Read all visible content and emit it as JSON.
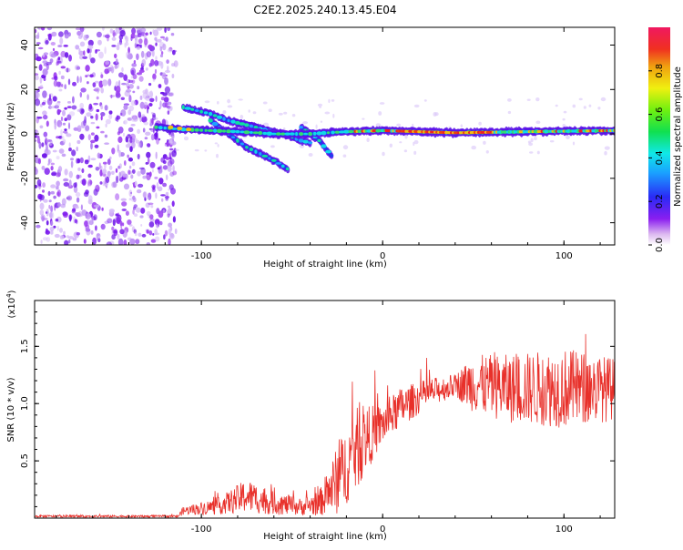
{
  "title": "C2E2.2025.240.13.45.E04",
  "chart_data": [
    {
      "type": "heatmap",
      "name": "spectrogram",
      "xlabel": "Height of straight line (km)",
      "ylabel": "Frequency (Hz)",
      "xlim": [
        -192,
        128
      ],
      "ylim": [
        -50,
        48
      ],
      "x_ticks": [
        -100,
        0,
        100
      ],
      "y_ticks": [
        -40,
        -20,
        0,
        20,
        40
      ],
      "noise_region_x": [
        -192,
        -116
      ],
      "main_line": [
        [
          -125,
          3
        ],
        [
          -110,
          2
        ],
        [
          -95,
          1.5
        ],
        [
          -80,
          1
        ],
        [
          -60,
          0
        ],
        [
          -40,
          0
        ],
        [
          -20,
          1
        ],
        [
          0,
          1.5
        ],
        [
          40,
          0.5
        ],
        [
          80,
          1
        ],
        [
          128,
          1.5
        ]
      ],
      "branches": [
        [
          [
            -110,
            12
          ],
          [
            -95,
            9
          ],
          [
            -85,
            6
          ],
          [
            -70,
            3
          ],
          [
            -60,
            0
          ]
        ],
        [
          [
            -95,
            6
          ],
          [
            -85,
            0
          ],
          [
            -75,
            -6
          ],
          [
            -60,
            -12
          ],
          [
            -52,
            -16
          ]
        ],
        [
          [
            -80,
            5
          ],
          [
            -70,
            3
          ],
          [
            -55,
            0
          ],
          [
            -45,
            -3
          ],
          [
            -40,
            -4
          ]
        ],
        [
          [
            -45,
            3
          ],
          [
            -35,
            -3
          ],
          [
            -30,
            -8
          ],
          [
            -28,
            -10
          ]
        ]
      ],
      "colorbar": {
        "label": "Normalized spectral amplitude",
        "range": [
          0,
          1
        ],
        "ticks": [
          0.0,
          0.2,
          0.4,
          0.6,
          0.8
        ]
      }
    },
    {
      "type": "line",
      "name": "snr",
      "xlabel": "Height of straight line (km)",
      "ylabel": "SNR (10 * v/v)",
      "y_multiplier": "(x10",
      "y_multiplier_exp": "4",
      "xlim": [
        -192,
        128
      ],
      "ylim": [
        0,
        1.9
      ],
      "x_ticks": [
        -100,
        0,
        100
      ],
      "y_ticks": [
        0.5,
        1.0,
        1.5
      ],
      "color": "#e8302a",
      "envelope": [
        {
          "x": -192,
          "base": 0.015,
          "amp": 0.02
        },
        {
          "x": -113,
          "base": 0.015,
          "amp": 0.02
        },
        {
          "x": -110,
          "base": 0.06,
          "amp": 0.07
        },
        {
          "x": -90,
          "base": 0.1,
          "amp": 0.15
        },
        {
          "x": -75,
          "base": 0.18,
          "amp": 0.3
        },
        {
          "x": -60,
          "base": 0.12,
          "amp": 0.2
        },
        {
          "x": -45,
          "base": 0.09,
          "amp": 0.15
        },
        {
          "x": -35,
          "base": 0.12,
          "amp": 0.22
        },
        {
          "x": -25,
          "base": 0.3,
          "amp": 0.6
        },
        {
          "x": -15,
          "base": 0.55,
          "amp": 0.75
        },
        {
          "x": -10,
          "base": 0.65,
          "amp": 0.6
        },
        {
          "x": 0,
          "base": 0.8,
          "amp": 0.35
        },
        {
          "x": 10,
          "base": 0.95,
          "amp": 0.35
        },
        {
          "x": 25,
          "base": 1.08,
          "amp": 0.25
        },
        {
          "x": 40,
          "base": 1.15,
          "amp": 0.2
        },
        {
          "x": 50,
          "base": 1.15,
          "amp": 0.5
        },
        {
          "x": 70,
          "base": 1.1,
          "amp": 0.6
        },
        {
          "x": 100,
          "base": 1.1,
          "amp": 0.7
        },
        {
          "x": 128,
          "base": 1.1,
          "amp": 0.55
        }
      ]
    }
  ]
}
